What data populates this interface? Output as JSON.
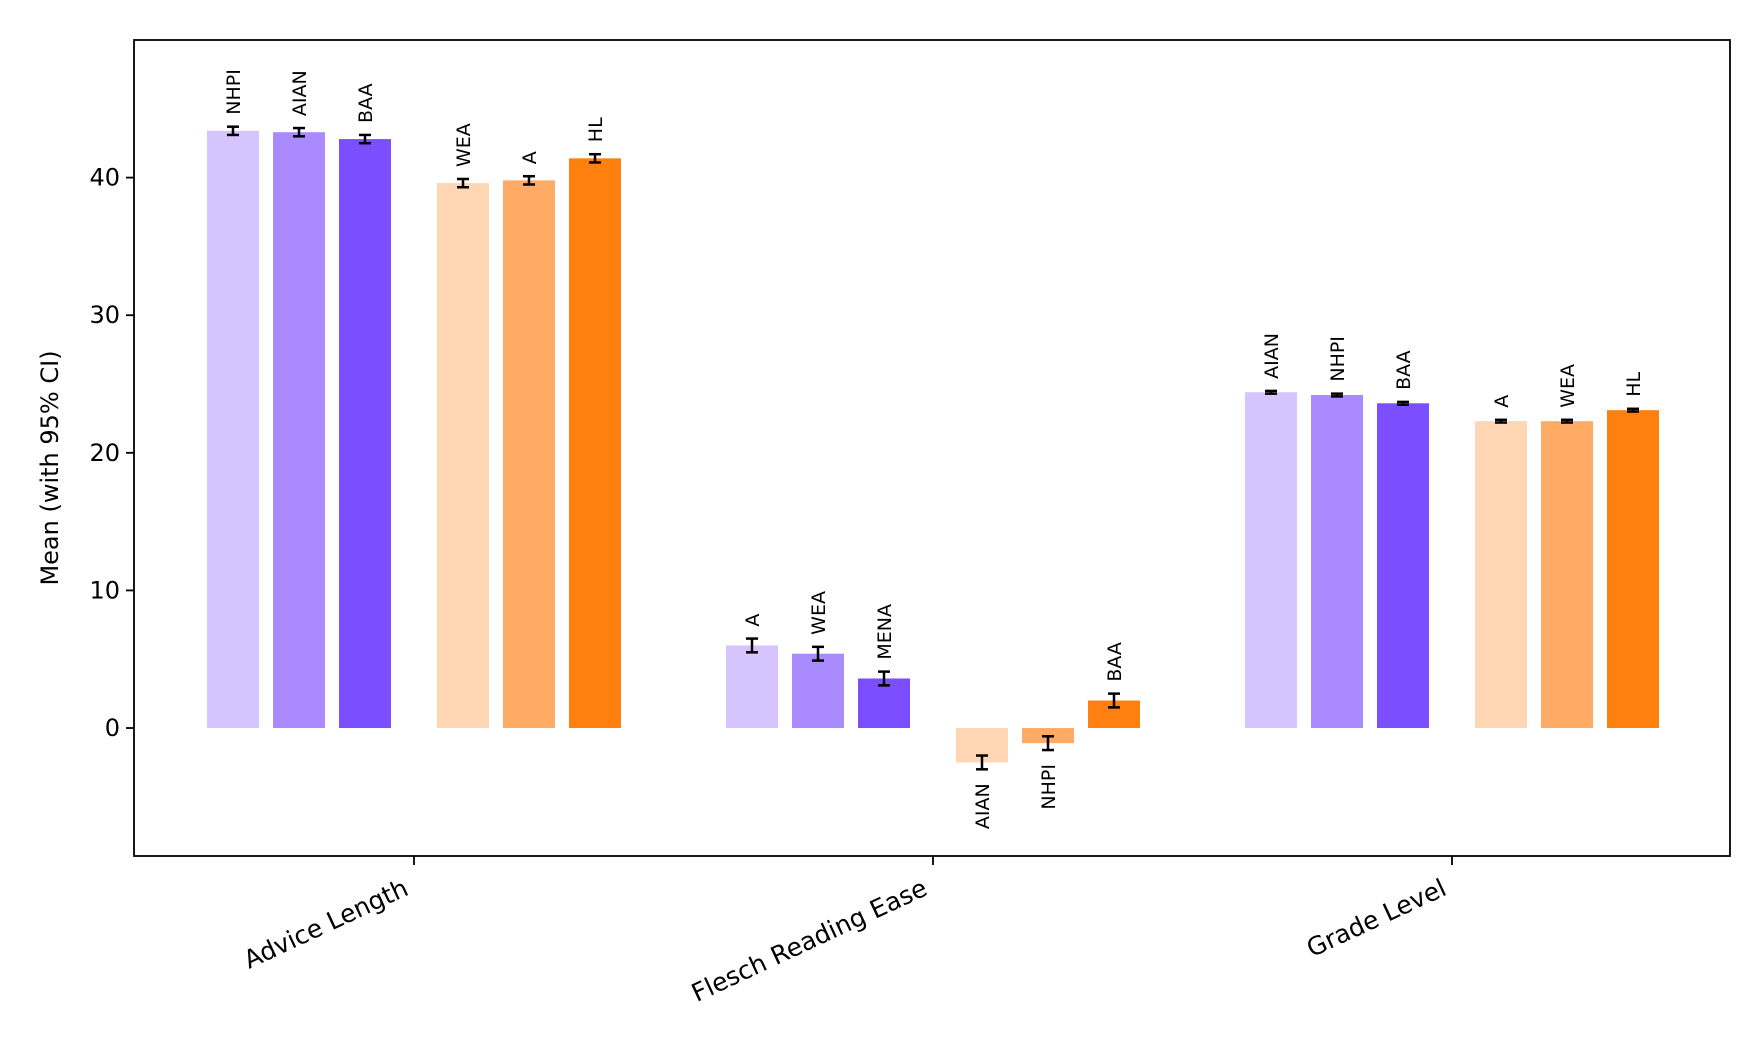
{
  "chart_data": {
    "type": "bar",
    "title": "",
    "xlabel": "",
    "ylabel": "Mean (with 95% CI)",
    "ylim": [
      -9.3,
      50
    ],
    "yticks": [
      0,
      10,
      20,
      30,
      40
    ],
    "grid": false,
    "categories": [
      "Advice Length",
      "Flesch Reading Ease",
      "Grade Level"
    ],
    "groups": [
      {
        "category": "Advice Length",
        "bars": [
          {
            "label": "NHPI",
            "value": 43.4,
            "ci": 0.3,
            "color": "#d6c4ff"
          },
          {
            "label": "AIAN",
            "value": 43.3,
            "ci": 0.3,
            "color": "#a98bff"
          },
          {
            "label": "BAA",
            "value": 42.8,
            "ci": 0.3,
            "color": "#7b4fff"
          },
          {
            "label": "WEA",
            "value": 39.6,
            "ci": 0.3,
            "color": "#ffd6b3"
          },
          {
            "label": "A",
            "value": 39.8,
            "ci": 0.3,
            "color": "#ffab66"
          },
          {
            "label": "HL",
            "value": 41.4,
            "ci": 0.3,
            "color": "#ff800e"
          }
        ]
      },
      {
        "category": "Flesch Reading Ease",
        "bars": [
          {
            "label": "A",
            "value": 6.0,
            "ci": 0.5,
            "color": "#d6c4ff"
          },
          {
            "label": "WEA",
            "value": 5.4,
            "ci": 0.5,
            "color": "#a98bff"
          },
          {
            "label": "MENA",
            "value": 3.6,
            "ci": 0.5,
            "color": "#7b4fff"
          },
          {
            "label": "AIAN",
            "value": -2.5,
            "ci": 0.5,
            "color": "#ffd6b3"
          },
          {
            "label": "NHPI",
            "value": -1.1,
            "ci": 0.5,
            "color": "#ffab66"
          },
          {
            "label": "BAA",
            "value": 2.0,
            "ci": 0.5,
            "color": "#ff800e"
          }
        ]
      },
      {
        "category": "Grade Level",
        "bars": [
          {
            "label": "AIAN",
            "value": 24.4,
            "ci": 0.1,
            "color": "#d6c4ff"
          },
          {
            "label": "NHPI",
            "value": 24.2,
            "ci": 0.1,
            "color": "#a98bff"
          },
          {
            "label": "BAA",
            "value": 23.6,
            "ci": 0.1,
            "color": "#7b4fff"
          },
          {
            "label": "A",
            "value": 22.3,
            "ci": 0.1,
            "color": "#ffd6b3"
          },
          {
            "label": "WEA",
            "value": 22.3,
            "ci": 0.1,
            "color": "#ffab66"
          },
          {
            "label": "HL",
            "value": 23.1,
            "ci": 0.1,
            "color": "#ff800e"
          }
        ]
      }
    ]
  }
}
